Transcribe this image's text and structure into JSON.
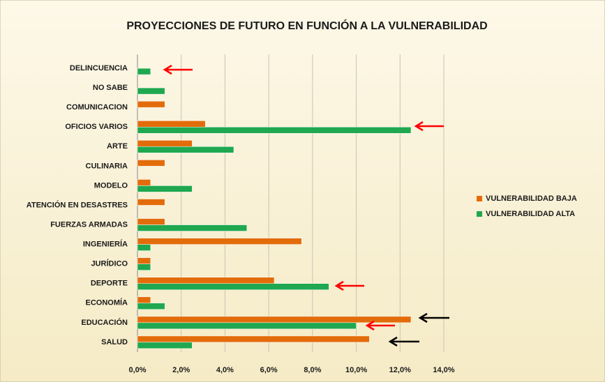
{
  "chart_data": {
    "type": "bar",
    "orientation": "horizontal",
    "title": "PROYECCIONES DE FUTURO EN FUNCIÓN A LA VULNERABILIDAD",
    "categories": [
      "DELINCUENCIA",
      "NO SABE",
      "COMUNICACION",
      "OFICIOS VARIOS",
      "ARTE",
      "CULINARIA",
      "MODELO",
      "ATENCIÓN EN DESASTRES",
      "FUERZAS ARMADAS",
      "INGENIERÍA",
      "JURÍDICO",
      "DEPORTE",
      "ECONOMÍA",
      "EDUCACIÓN",
      "SALUD"
    ],
    "series": [
      {
        "name": "VULNERABILIDAD BAJA",
        "color": "#e36c0a",
        "values": [
          0,
          0,
          1.25,
          3.1,
          2.5,
          1.25,
          0.6,
          1.25,
          1.25,
          7.5,
          0.6,
          6.25,
          0.6,
          12.5,
          10.6
        ]
      },
      {
        "name": "VULNERABILIDAD ALTA",
        "color": "#1fa84f",
        "values": [
          0.6,
          1.25,
          0,
          12.5,
          4.4,
          0,
          2.5,
          0,
          5,
          0.6,
          0.6,
          8.75,
          1.25,
          10,
          2.5
        ]
      }
    ],
    "xlim": [
      0,
      14
    ],
    "xticks": [
      {
        "value": 0,
        "label": "0,0%"
      },
      {
        "value": 2,
        "label": "2,0%"
      },
      {
        "value": 4,
        "label": "4,0%"
      },
      {
        "value": 6,
        "label": "6,0%"
      },
      {
        "value": 8,
        "label": "8,0%"
      },
      {
        "value": 10,
        "label": "10,0%"
      },
      {
        "value": 12,
        "label": "12,0%"
      },
      {
        "value": 14,
        "label": "14,0%"
      }
    ],
    "grid": true,
    "legend": "right"
  }
}
